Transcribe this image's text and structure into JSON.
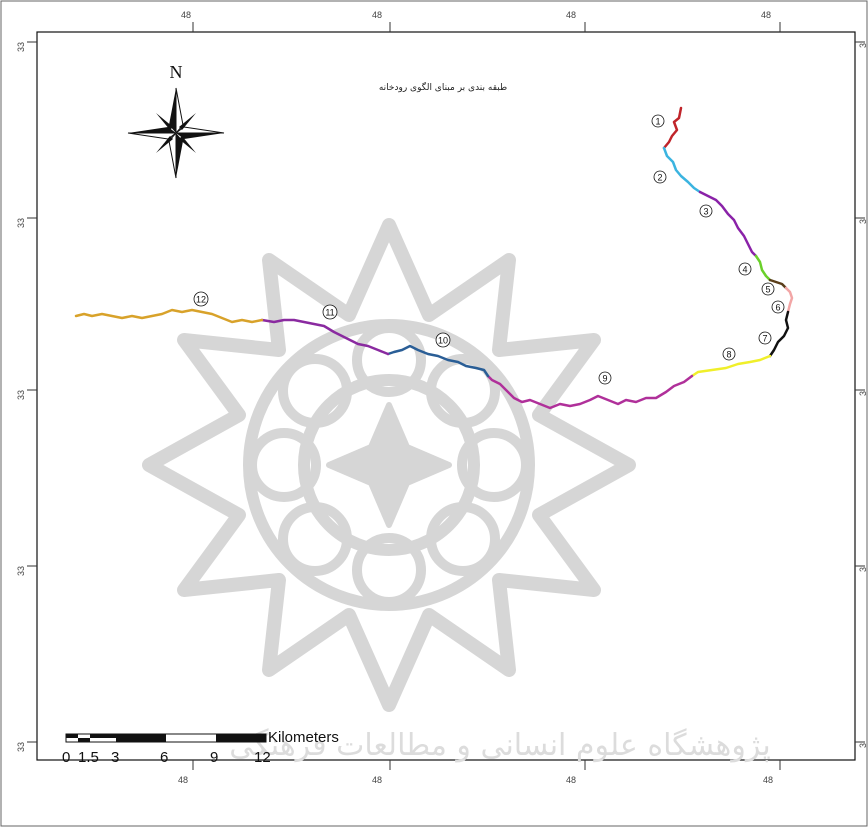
{
  "map": {
    "title": "طبقه بندی بر مبنای الگوی رودخانه",
    "north_label": "N",
    "lon_tick_label": "48",
    "lat_tick_label": "33",
    "lon_ticks_top": [
      "48",
      "48",
      "48",
      "48"
    ],
    "lon_ticks_bottom": [
      "48",
      "48",
      "48",
      "48"
    ],
    "lat_ticks_left": [
      "33",
      "33",
      "33",
      "33",
      "33"
    ],
    "lat_ticks_right": [
      "3",
      "3",
      "3",
      "3",
      "3"
    ]
  },
  "scale_bar": {
    "unit": "Kilometers",
    "labels": [
      "0",
      "1.5",
      "3",
      "6",
      "9",
      "12"
    ]
  },
  "watermark": {
    "text": "پژوهشگاه علوم انسانی و مطالعات فرهنگی"
  },
  "river_segments": [
    {
      "id": "1",
      "label": "1",
      "color": "#c0242a"
    },
    {
      "id": "2",
      "label": "2",
      "color": "#3bb4e0"
    },
    {
      "id": "3",
      "label": "3",
      "color": "#8a22a8"
    },
    {
      "id": "4",
      "label": "4",
      "color": "#6ad02a"
    },
    {
      "id": "5",
      "label": "5",
      "color": "#5a3e1a"
    },
    {
      "id": "6",
      "label": "6",
      "color": "#f2a6a6"
    },
    {
      "id": "7",
      "label": "7",
      "color": "#111111"
    },
    {
      "id": "8",
      "label": "8",
      "color": "#f0ef2a"
    },
    {
      "id": "9",
      "label": "9",
      "color": "#b0309a"
    },
    {
      "id": "10",
      "label": "10",
      "color": "#2a5e96"
    },
    {
      "id": "11",
      "label": "11",
      "color": "#8a2aa0"
    },
    {
      "id": "12",
      "label": "12",
      "color": "#d8a22a"
    }
  ]
}
